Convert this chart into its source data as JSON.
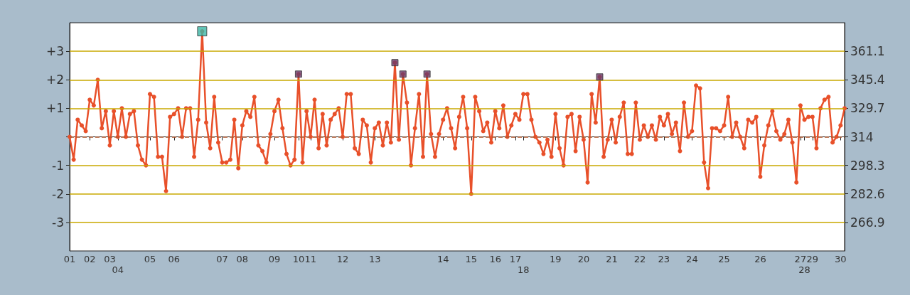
{
  "chart_data": {
    "type": "line",
    "categories": [
      "01",
      null,
      null,
      null,
      null,
      "02",
      null,
      null,
      null,
      null,
      "03",
      null,
      "04",
      null,
      null,
      null,
      null,
      null,
      null,
      null,
      "05",
      null,
      null,
      null,
      null,
      null,
      "06",
      null,
      null,
      null,
      null,
      null,
      null,
      null,
      null,
      null,
      null,
      null,
      "07",
      null,
      null,
      null,
      null,
      "08",
      null,
      null,
      null,
      null,
      null,
      null,
      null,
      "09",
      null,
      null,
      null,
      null,
      null,
      "10",
      null,
      null,
      "11",
      null,
      null,
      null,
      null,
      null,
      null,
      null,
      "12",
      null,
      null,
      null,
      null,
      null,
      null,
      null,
      "13",
      null,
      null,
      null,
      null,
      null,
      null,
      null,
      null,
      null,
      null,
      null,
      null,
      null,
      null,
      null,
      null,
      "14",
      null,
      null,
      null,
      null,
      null,
      null,
      "15",
      null,
      null,
      null,
      null,
      null,
      "16",
      null,
      null,
      null,
      null,
      "17",
      null,
      "18",
      null,
      null,
      null,
      null,
      null,
      null,
      null,
      "19",
      null,
      null,
      null,
      null,
      null,
      null,
      "20",
      null,
      null,
      null,
      null,
      null,
      null,
      "21",
      null,
      null,
      null,
      null,
      null,
      null,
      "22",
      null,
      null,
      null,
      null,
      null,
      "23",
      null,
      null,
      null,
      null,
      null,
      null,
      "24",
      null,
      null,
      null,
      null,
      null,
      null,
      null,
      "25",
      null,
      null,
      null,
      null,
      null,
      null,
      null,
      null,
      "26",
      null,
      null,
      null,
      null,
      null,
      null,
      null,
      null,
      null,
      "27",
      "28",
      null,
      "29",
      null,
      null,
      null,
      null,
      null,
      null,
      "30",
      null
    ],
    "series": [
      {
        "color": "#e8502a",
        "marker": "circle",
        "values": [
          0,
          -0.8,
          0.6,
          0.4,
          0.2,
          1.3,
          1.1,
          2.0,
          0.3,
          0.9,
          -0.3,
          0.9,
          0.0,
          1.0,
          0.0,
          0.8,
          0.9,
          -0.3,
          -0.8,
          -1.0,
          1.5,
          1.4,
          -0.7,
          -0.7,
          -1.9,
          0.7,
          0.8,
          1.0,
          0.0,
          1.0,
          1.0,
          -0.7,
          0.6,
          3.7,
          0.5,
          -0.4,
          1.4,
          -0.2,
          -0.9,
          -0.9,
          -0.8,
          0.6,
          -1.1,
          0.4,
          0.9,
          0.7,
          1.4,
          -0.3,
          -0.5,
          -0.9,
          0.1,
          0.9,
          1.3,
          0.3,
          -0.6,
          -1.0,
          -0.8,
          2.2,
          -0.9,
          0.9,
          0.0,
          1.3,
          -0.4,
          0.8,
          -0.3,
          0.6,
          0.8,
          1.0,
          0.0,
          1.5,
          1.5,
          -0.4,
          -0.6,
          0.6,
          0.4,
          -0.9,
          0.3,
          0.5,
          -0.3,
          0.5,
          -0.2,
          2.6,
          -0.1,
          2.2,
          1.2,
          -1.0,
          0.3,
          1.5,
          -0.7,
          2.2,
          0.1,
          -0.7,
          0.1,
          0.6,
          1.0,
          0.3,
          -0.4,
          0.7,
          1.4,
          0.3,
          -2.0,
          1.4,
          0.9,
          0.2,
          0.5,
          -0.2,
          0.9,
          0.3,
          1.1,
          0.0,
          0.4,
          0.8,
          0.6,
          1.5,
          1.5,
          0.6,
          0.0,
          -0.2,
          -0.6,
          -0.1,
          -0.7,
          0.8,
          -0.4,
          -1.0,
          0.7,
          0.8,
          -0.5,
          0.7,
          -0.1,
          -1.6,
          1.5,
          0.5,
          2.1,
          -0.7,
          -0.1,
          0.6,
          -0.2,
          0.7,
          1.2,
          -0.6,
          -0.6,
          1.2,
          -0.1,
          0.4,
          0.0,
          0.4,
          -0.1,
          0.7,
          0.4,
          0.8,
          0.1,
          0.5,
          -0.5,
          1.2,
          0.0,
          0.2,
          1.8,
          1.7,
          -0.9,
          -1.8,
          0.3,
          0.3,
          0.2,
          0.4,
          1.4,
          0.0,
          0.5,
          0.0,
          -0.4,
          0.6,
          0.5,
          0.7,
          -1.4,
          -0.3,
          0.4,
          0.9,
          0.2,
          -0.1,
          0.1,
          0.6,
          -0.2,
          -1.6,
          1.1,
          0.6,
          0.7,
          0.7,
          -0.4,
          1.0,
          1.3,
          1.4,
          -0.2,
          0.0,
          0.4,
          1.0
        ]
      },
      {
        "type": "scatter",
        "color": "#3cb8a8",
        "marker": "square",
        "values": [
          null,
          null,
          null,
          null,
          null,
          null,
          null,
          null,
          null,
          null,
          null,
          null,
          null,
          null,
          null,
          null,
          null,
          null,
          null,
          null,
          null,
          null,
          null,
          null,
          null,
          null,
          null,
          null,
          null,
          null,
          null,
          null,
          null,
          3.7,
          null,
          null,
          null,
          null,
          null,
          null,
          null,
          null,
          null,
          null,
          null,
          null,
          null,
          null,
          null,
          null,
          null,
          null,
          null,
          null,
          null,
          null,
          null,
          null,
          null,
          null,
          null,
          null,
          null,
          null,
          null,
          null,
          null,
          null,
          null,
          null,
          null,
          null,
          null,
          null,
          null,
          null,
          null,
          null,
          null,
          null,
          null,
          null,
          null,
          null,
          null,
          null,
          null,
          null,
          null,
          null,
          null,
          null,
          null,
          null,
          null,
          null,
          null,
          null,
          null,
          null,
          null,
          null,
          null,
          null,
          null,
          null,
          null,
          null,
          null,
          null,
          null,
          null,
          null,
          null,
          null,
          null,
          null,
          null,
          null,
          null,
          null,
          null,
          null,
          null,
          null,
          null,
          null,
          null,
          null,
          null,
          null,
          null,
          null,
          null,
          null,
          null,
          null,
          null,
          null,
          null,
          null,
          null,
          null,
          null,
          null,
          null,
          null,
          null,
          null,
          null,
          null,
          null,
          null,
          null,
          null,
          null,
          null,
          null,
          null,
          null,
          null,
          null,
          null,
          null,
          null,
          null,
          null,
          null,
          null,
          null,
          null,
          null,
          null,
          null,
          null,
          null,
          null,
          null,
          null,
          null,
          null,
          null,
          null,
          null,
          null,
          null,
          null,
          null,
          null,
          null,
          null,
          null,
          null,
          null
        ]
      },
      {
        "type": "scatter",
        "color": "#6a3a6a",
        "marker": "square",
        "values": [
          null,
          null,
          null,
          null,
          null,
          null,
          null,
          null,
          null,
          null,
          null,
          null,
          null,
          null,
          null,
          null,
          null,
          null,
          null,
          null,
          null,
          null,
          null,
          null,
          null,
          null,
          null,
          null,
          null,
          null,
          null,
          null,
          null,
          null,
          null,
          null,
          null,
          null,
          null,
          null,
          null,
          null,
          null,
          null,
          null,
          null,
          null,
          null,
          null,
          null,
          null,
          null,
          null,
          null,
          null,
          null,
          null,
          2.2,
          null,
          null,
          null,
          null,
          null,
          null,
          null,
          null,
          null,
          null,
          null,
          null,
          null,
          null,
          null,
          null,
          null,
          null,
          null,
          null,
          null,
          null,
          null,
          2.6,
          null,
          2.2,
          null,
          null,
          null,
          null,
          null,
          2.2,
          null,
          null,
          null,
          null,
          null,
          null,
          null,
          null,
          null,
          null,
          null,
          null,
          null,
          null,
          null,
          null,
          null,
          null,
          null,
          null,
          null,
          null,
          null,
          null,
          null,
          null,
          null,
          null,
          null,
          null,
          null,
          null,
          null,
          null,
          null,
          null,
          null,
          null,
          null,
          null,
          null,
          null,
          2.1,
          null,
          null,
          null,
          null,
          null,
          null,
          null,
          null,
          null,
          null,
          null,
          null,
          null,
          null,
          null,
          null,
          null,
          null,
          null,
          null,
          null,
          null,
          null,
          null,
          null,
          null,
          null,
          null,
          null,
          null,
          null,
          null,
          null,
          null,
          null,
          null,
          null,
          null,
          null,
          null,
          null,
          null,
          null,
          null,
          null,
          null,
          null,
          null,
          null,
          null,
          null,
          null,
          null,
          null,
          null,
          null,
          null,
          null,
          null,
          null,
          null
        ]
      }
    ],
    "ylim": [
      -4,
      4
    ],
    "yticks": [
      {
        "value": -3,
        "label": "-3"
      },
      {
        "value": -2,
        "label": "-2"
      },
      {
        "value": -1,
        "label": "-1"
      },
      {
        "value": 0,
        "label": null
      },
      {
        "value": 1,
        "label": "+1"
      },
      {
        "value": 2,
        "label": "+2"
      },
      {
        "value": 3,
        "label": "+3"
      }
    ],
    "y2lim": [
      251.2,
      376.8
    ],
    "y2ticks": [
      266.9,
      282.6,
      298.3,
      314,
      329.7,
      345.4,
      361.1
    ],
    "ref_lines": [
      {
        "axis": "y",
        "value": 3,
        "label": null,
        "color": "#c8a800"
      },
      {
        "axis": "y",
        "value": 2,
        "label": null,
        "color": "#c8a800"
      },
      {
        "axis": "y",
        "value": 1,
        "label": null,
        "color": "#c8a800"
      },
      {
        "axis": "y",
        "value": 0,
        "label": null,
        "color": "#b05a30",
        "line_style": "dashed"
      },
      {
        "axis": "y",
        "value": -1,
        "label": null,
        "color": "#c8a800"
      },
      {
        "axis": "y",
        "value": -2,
        "label": null,
        "color": "#c8a800"
      },
      {
        "axis": "y",
        "value": -3,
        "label": null,
        "color": "#c8a800"
      }
    ],
    "grid": false
  }
}
